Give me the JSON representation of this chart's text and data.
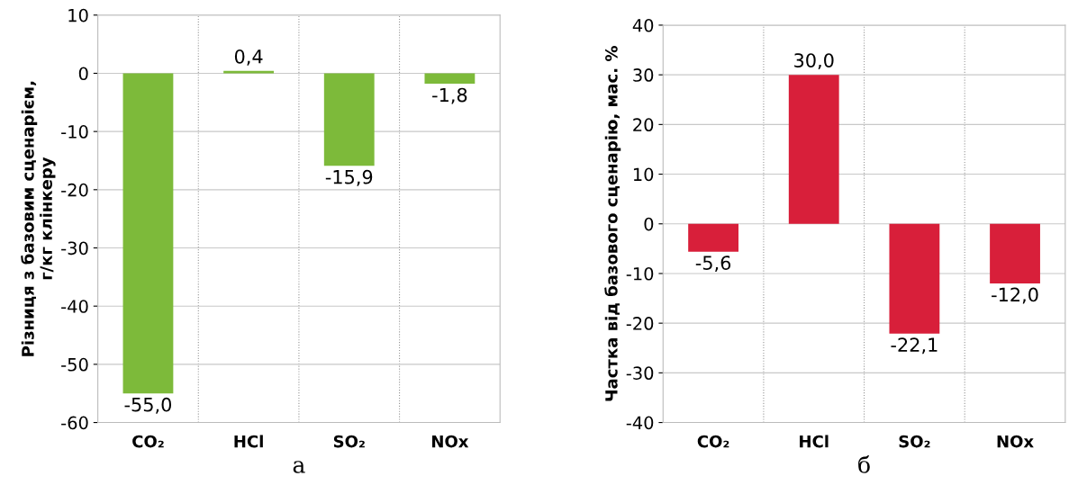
{
  "chart_data": [
    {
      "type": "bar",
      "xlabel": "а",
      "ylabel": "Різниця з базовим сценарієм,\nг/кг клінкеру",
      "categories": [
        "CO₂",
        "HCl",
        "SO₂",
        "NOx"
      ],
      "values": [
        -55.0,
        0.4,
        -15.9,
        -1.8
      ],
      "value_labels": [
        "-55,0",
        "0,4",
        "-15,9",
        "-1,8"
      ],
      "color": "#7dba3a",
      "ylim": [
        -60,
        10
      ],
      "yticks": [
        -60,
        -50,
        -40,
        -30,
        -20,
        -10,
        0,
        10
      ],
      "grid": true
    },
    {
      "type": "bar",
      "xlabel": "б",
      "ylabel": "Частка від базового сценарію, мас. %",
      "categories": [
        "CO₂",
        "HCl",
        "SO₂",
        "NOx"
      ],
      "values": [
        -5.6,
        30.0,
        -22.1,
        -12.0
      ],
      "value_labels": [
        "-5,6",
        "30,0",
        "-22,1",
        "-12,0"
      ],
      "color": "#d81f3a",
      "ylim": [
        -40,
        40
      ],
      "yticks": [
        -40,
        -30,
        -20,
        -10,
        0,
        10,
        20,
        30,
        40
      ],
      "grid": true
    }
  ]
}
